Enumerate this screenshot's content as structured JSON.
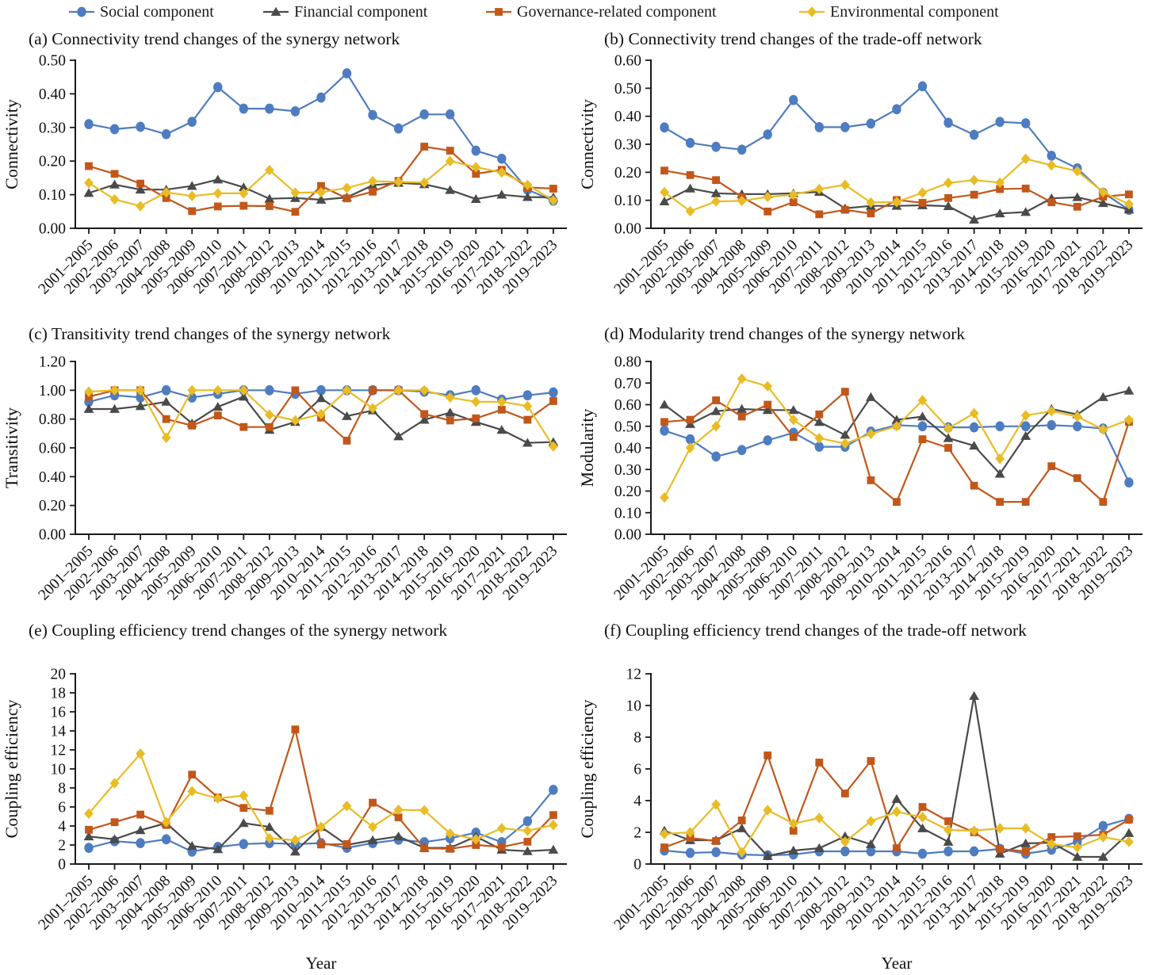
{
  "figure": {
    "legend": [
      {
        "label": "Social component",
        "color": "#4E7CC0",
        "marker": "circle"
      },
      {
        "label": "Financial component",
        "color": "#4A4A4A",
        "marker": "triangle"
      },
      {
        "label": "Governance-related component",
        "color": "#C2571A",
        "marker": "square"
      },
      {
        "label": "Environmental component",
        "color": "#E9BC25",
        "marker": "diamond"
      }
    ],
    "xlabel": "Year"
  },
  "categories": [
    "2001–2005",
    "2002–2006",
    "2003–2007",
    "2004–2008",
    "2005–2009",
    "2006–2010",
    "2007–2011",
    "2008–2012",
    "2009–2013",
    "2010–2014",
    "2011–2015",
    "2012–2016",
    "2013–2017",
    "2014–2018",
    "2015–2019",
    "2016–2020",
    "2017–2021",
    "2018–2022",
    "2019–2023"
  ],
  "chart_data": [
    {
      "id": "a",
      "type": "line",
      "row": 1,
      "title": "(a) Connectivity trend changes of the synergy network",
      "ylabel": "Connectivity",
      "ylim": [
        0,
        0.5
      ],
      "yticks": [
        "0.00",
        "0.10",
        "0.20",
        "0.30",
        "0.40",
        "0.50"
      ],
      "series": [
        {
          "name": "Social component",
          "values": [
            0.31,
            0.295,
            0.302,
            0.28,
            0.317,
            0.42,
            0.356,
            0.356,
            0.348,
            0.389,
            0.461,
            0.337,
            0.297,
            0.339,
            0.339,
            0.231,
            0.207,
            0.115,
            0.082
          ]
        },
        {
          "name": "Financial component",
          "values": [
            0.105,
            0.13,
            0.115,
            0.115,
            0.126,
            0.145,
            0.122,
            0.088,
            0.09,
            0.085,
            0.092,
            0.128,
            0.135,
            0.131,
            0.114,
            0.087,
            0.1,
            0.093,
            0.092
          ]
        },
        {
          "name": "Governance-related component",
          "values": [
            0.185,
            0.162,
            0.133,
            0.09,
            0.051,
            0.065,
            0.067,
            0.066,
            0.049,
            0.126,
            0.089,
            0.109,
            0.141,
            0.243,
            0.231,
            0.162,
            0.174,
            0.122,
            0.118
          ]
        },
        {
          "name": "Environmental component",
          "values": [
            0.135,
            0.086,
            0.066,
            0.107,
            0.096,
            0.104,
            0.104,
            0.173,
            0.106,
            0.107,
            0.12,
            0.14,
            0.138,
            0.136,
            0.2,
            0.182,
            0.166,
            0.129,
            0.083
          ]
        }
      ]
    },
    {
      "id": "b",
      "type": "line",
      "row": 1,
      "title": "(b) Connectivity trend changes of the trade-off network",
      "ylabel": "Connectivity",
      "ylim": [
        0,
        0.6
      ],
      "yticks": [
        "0.00",
        "0.10",
        "0.20",
        "0.30",
        "0.40",
        "0.50",
        "0.60"
      ],
      "series": [
        {
          "name": "Social component",
          "values": [
            0.36,
            0.305,
            0.291,
            0.281,
            0.335,
            0.458,
            0.361,
            0.361,
            0.374,
            0.425,
            0.507,
            0.377,
            0.334,
            0.38,
            0.375,
            0.259,
            0.214,
            0.127,
            0.066
          ]
        },
        {
          "name": "Financial component",
          "values": [
            0.096,
            0.142,
            0.125,
            0.122,
            0.122,
            0.125,
            0.13,
            0.071,
            0.08,
            0.08,
            0.082,
            0.079,
            0.031,
            0.053,
            0.058,
            0.107,
            0.111,
            0.09,
            0.067
          ]
        },
        {
          "name": "Governance-related component",
          "values": [
            0.206,
            0.19,
            0.172,
            0.112,
            0.06,
            0.093,
            0.05,
            0.066,
            0.053,
            0.101,
            0.091,
            0.108,
            0.12,
            0.14,
            0.142,
            0.093,
            0.077,
            0.113,
            0.121
          ]
        },
        {
          "name": "Environmental component",
          "values": [
            0.129,
            0.061,
            0.096,
            0.098,
            0.112,
            0.12,
            0.14,
            0.155,
            0.092,
            0.094,
            0.127,
            0.162,
            0.172,
            0.163,
            0.248,
            0.225,
            0.204,
            0.129,
            0.086
          ]
        }
      ]
    },
    {
      "id": "c",
      "type": "line",
      "row": 2,
      "title": "(c) Transitivity trend changes of the synergy network",
      "ylabel": "Transitivity",
      "ylim": [
        0,
        1.2
      ],
      "yticks": [
        "0.00",
        "0.20",
        "0.40",
        "0.60",
        "0.80",
        "1.00",
        "1.20"
      ],
      "series": [
        {
          "name": "Social component",
          "values": [
            0.92,
            0.965,
            0.95,
            1.0,
            0.95,
            0.975,
            1.0,
            1.0,
            0.975,
            1.0,
            1.0,
            1.0,
            1.0,
            0.99,
            0.965,
            1.0,
            0.935,
            0.965,
            0.985
          ]
        },
        {
          "name": "Financial component",
          "values": [
            0.87,
            0.87,
            0.89,
            0.92,
            0.77,
            0.885,
            0.955,
            0.725,
            0.78,
            0.945,
            0.82,
            0.86,
            0.68,
            0.795,
            0.845,
            0.78,
            0.725,
            0.635,
            0.64
          ]
        },
        {
          "name": "Governance-related component",
          "values": [
            0.955,
            1.0,
            1.0,
            0.8,
            0.755,
            0.825,
            0.745,
            0.745,
            1.0,
            0.81,
            0.65,
            1.0,
            1.0,
            0.835,
            0.79,
            0.805,
            0.865,
            0.795,
            0.925
          ]
        },
        {
          "name": "Environmental component",
          "values": [
            0.99,
            1.0,
            1.0,
            0.67,
            1.0,
            1.0,
            1.0,
            0.83,
            0.79,
            0.835,
            1.0,
            0.875,
            1.0,
            1.0,
            0.95,
            0.92,
            0.92,
            0.89,
            0.61
          ]
        }
      ]
    },
    {
      "id": "d",
      "type": "line",
      "row": 2,
      "title": "(d) Modularity trend changes of the synergy network",
      "ylabel": "Modularity",
      "ylim": [
        0,
        0.8
      ],
      "yticks": [
        "0.00",
        "0.10",
        "0.20",
        "0.30",
        "0.40",
        "0.50",
        "0.60",
        "0.70",
        "0.80"
      ],
      "series": [
        {
          "name": "Social component",
          "values": [
            0.48,
            0.44,
            0.36,
            0.39,
            0.435,
            0.47,
            0.405,
            0.405,
            0.475,
            0.505,
            0.5,
            0.495,
            0.495,
            0.5,
            0.5,
            0.505,
            0.5,
            0.49,
            0.24
          ]
        },
        {
          "name": "Financial component",
          "values": [
            0.6,
            0.51,
            0.57,
            0.58,
            0.575,
            0.575,
            0.52,
            0.46,
            0.635,
            0.53,
            0.545,
            0.445,
            0.41,
            0.28,
            0.455,
            0.58,
            0.555,
            0.635,
            0.665
          ]
        },
        {
          "name": "Governance-related component",
          "values": [
            0.52,
            0.53,
            0.62,
            0.545,
            0.6,
            0.45,
            0.555,
            0.66,
            0.25,
            0.15,
            0.44,
            0.4,
            0.225,
            0.15,
            0.15,
            0.315,
            0.26,
            0.15,
            0.52
          ]
        },
        {
          "name": "Environmental component",
          "values": [
            0.17,
            0.4,
            0.5,
            0.72,
            0.685,
            0.53,
            0.445,
            0.42,
            0.465,
            0.5,
            0.62,
            0.49,
            0.56,
            0.35,
            0.55,
            0.57,
            0.545,
            0.485,
            0.53
          ]
        }
      ]
    },
    {
      "id": "e",
      "type": "line",
      "row": 3,
      "title": "(e) Coupling efficiency trend changes of the synergy network",
      "ylabel": "Coupling efficiency",
      "ylim": [
        0,
        20
      ],
      "xlabel": "Year",
      "yticks": [
        "0",
        "2",
        "4",
        "6",
        "8",
        "10",
        "12",
        "14",
        "16",
        "18",
        "20"
      ],
      "series": [
        {
          "name": "Social component",
          "values": [
            1.7,
            2.4,
            2.2,
            2.6,
            1.3,
            1.8,
            2.1,
            2.2,
            2.1,
            2.2,
            1.7,
            2.2,
            2.55,
            2.3,
            2.7,
            3.3,
            2.3,
            4.5,
            7.8
          ]
        },
        {
          "name": "Financial component",
          "values": [
            2.9,
            2.6,
            3.55,
            4.3,
            1.9,
            1.55,
            4.3,
            3.9,
            1.3,
            3.9,
            2.0,
            2.5,
            2.9,
            1.7,
            1.7,
            2.9,
            1.5,
            1.35,
            1.5
          ]
        },
        {
          "name": "Governance-related component",
          "values": [
            3.6,
            4.4,
            5.2,
            4.1,
            9.4,
            7.0,
            5.9,
            5.6,
            14.15,
            2.05,
            2.1,
            6.45,
            4.9,
            1.65,
            1.6,
            2.0,
            1.8,
            2.35,
            5.15
          ]
        },
        {
          "name": "Environmental component",
          "values": [
            5.3,
            8.5,
            11.6,
            4.4,
            7.65,
            6.9,
            7.2,
            2.7,
            2.5,
            3.9,
            6.1,
            3.9,
            5.7,
            5.65,
            3.2,
            2.6,
            3.75,
            3.5,
            4.1
          ]
        }
      ]
    },
    {
      "id": "f",
      "type": "line",
      "row": 3,
      "title": "(f) Coupling efficiency trend changes of the trade-off network",
      "ylabel": "Coupling efficiency",
      "ylim": [
        0,
        12
      ],
      "xlabel": "Year",
      "yticks": [
        "0",
        "2",
        "4",
        "6",
        "8",
        "10",
        "12"
      ],
      "series": [
        {
          "name": "Social component",
          "values": [
            0.85,
            0.7,
            0.75,
            0.6,
            0.55,
            0.6,
            0.8,
            0.8,
            0.8,
            0.8,
            0.65,
            0.8,
            0.8,
            0.95,
            0.65,
            0.9,
            1.4,
            2.4,
            2.85
          ]
        },
        {
          "name": "Financial component",
          "values": [
            2.1,
            1.5,
            1.5,
            2.25,
            0.5,
            0.85,
            1.0,
            1.75,
            1.25,
            4.1,
            2.25,
            1.4,
            10.6,
            0.65,
            1.3,
            1.35,
            0.45,
            0.45,
            1.95
          ]
        },
        {
          "name": "Governance-related component",
          "values": [
            1.05,
            1.65,
            1.45,
            2.75,
            6.85,
            2.1,
            6.4,
            4.45,
            6.5,
            1.0,
            3.6,
            2.7,
            2.0,
            0.95,
            0.8,
            1.7,
            1.75,
            1.85,
            2.8
          ]
        },
        {
          "name": "Environmental component",
          "values": [
            1.9,
            2.0,
            3.75,
            0.75,
            3.4,
            2.55,
            2.9,
            1.4,
            2.7,
            3.3,
            2.95,
            2.15,
            2.1,
            2.25,
            2.25,
            1.25,
            1.05,
            1.7,
            1.4
          ]
        }
      ]
    }
  ]
}
